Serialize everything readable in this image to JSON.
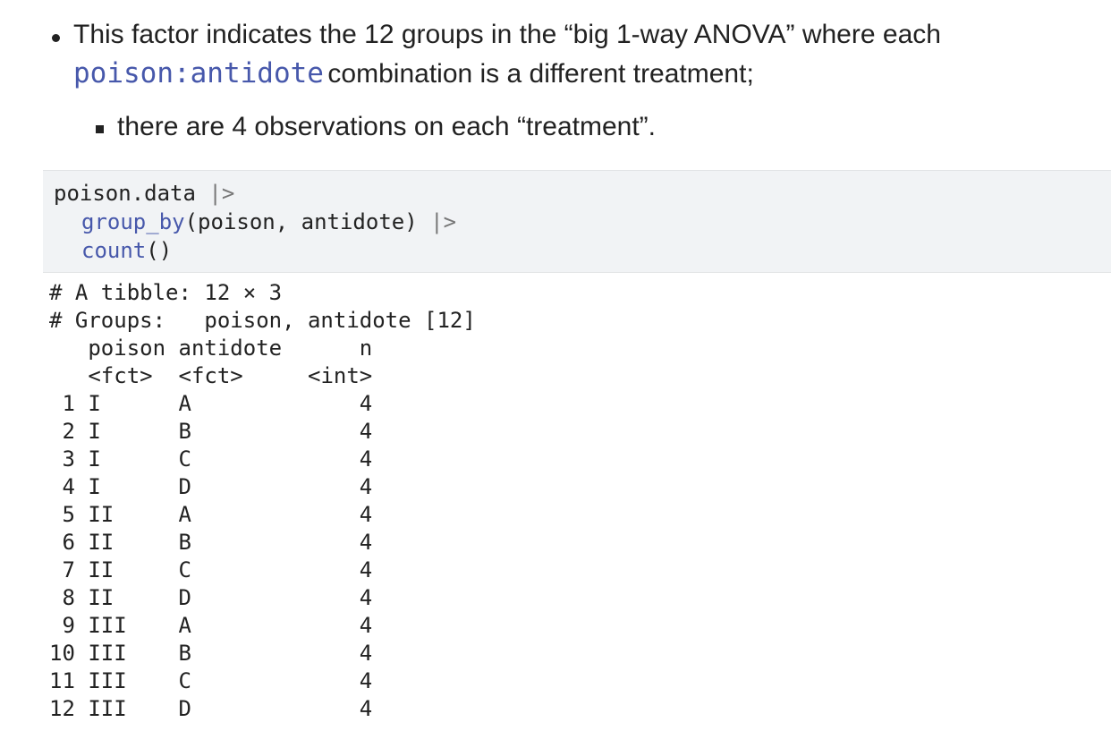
{
  "bullet": {
    "text_before": "This factor indicates the 12 groups in the “big 1-way ANOVA” where each",
    "code": "poison:antidote",
    "text_after": "combination is a different treatment;",
    "sub": "there are 4 observations on each “treatment”."
  },
  "code": [
    [
      "poison.data",
      " |>"
    ],
    [
      "group_by",
      "(poison, antidote)",
      " |>"
    ],
    [
      "count",
      "()"
    ]
  ],
  "output": {
    "header": [
      "# A tibble: 12 × 3",
      "# Groups:   poison, antidote [12]"
    ],
    "columns": [
      "poison",
      "antidote",
      "n"
    ],
    "types": [
      "<fct>",
      "<fct>",
      "<int>"
    ],
    "rows": [
      [
        1,
        "I",
        "A",
        4
      ],
      [
        2,
        "I",
        "B",
        4
      ],
      [
        3,
        "I",
        "C",
        4
      ],
      [
        4,
        "I",
        "D",
        4
      ],
      [
        5,
        "II",
        "A",
        4
      ],
      [
        6,
        "II",
        "B",
        4
      ],
      [
        7,
        "II",
        "C",
        4
      ],
      [
        8,
        "II",
        "D",
        4
      ],
      [
        9,
        "III",
        "A",
        4
      ],
      [
        10,
        "III",
        "B",
        4
      ],
      [
        11,
        "III",
        "C",
        4
      ],
      [
        12,
        "III",
        "D",
        4
      ]
    ]
  }
}
